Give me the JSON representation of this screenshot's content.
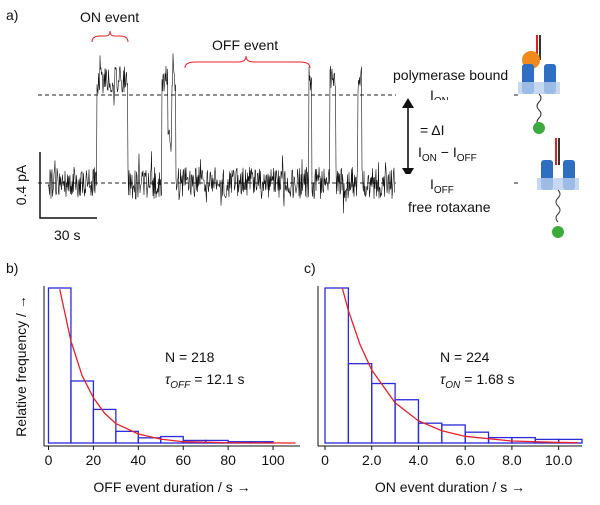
{
  "panel_a": {
    "label": "a)",
    "on_event": "ON event",
    "off_event": "OFF event",
    "polymerase_bound": "polymerase bound",
    "i_on": {
      "main": "I",
      "sub": "ON"
    },
    "delta": "= ΔI",
    "difference": {
      "a": "I",
      "a_sub": "ON",
      "minus": " − I",
      "b_sub": "OFF"
    },
    "i_off": {
      "main": "I",
      "sub": "OFF"
    },
    "free_rotaxane": "free rotaxane",
    "scale_current": "0.4 pA",
    "scale_time": "30 s"
  },
  "chart_data": [
    {
      "type": "histogram",
      "panel_label": "b)",
      "ylabel": "Relative frequency / →",
      "xlabel": "OFF event duration / s →",
      "bins": [
        0,
        10,
        20,
        30,
        40,
        50,
        60,
        70,
        80,
        90,
        100,
        110
      ],
      "values": [
        120,
        48,
        26,
        9,
        4,
        5,
        2,
        2,
        1,
        1,
        0
      ],
      "color": "#2b2bd8",
      "xlim": [
        -2,
        112
      ],
      "xticks": [
        0,
        20,
        40,
        60,
        80,
        100
      ],
      "ylim": [
        0,
        120
      ],
      "n_label": "N = 218",
      "tau_label": {
        "symbol": "τ",
        "sub": "OFF",
        "rest": "= 12.1 s"
      },
      "fit": {
        "color": "#e8202a",
        "x": [
          5,
          10,
          15,
          20,
          25,
          30,
          40,
          50,
          60,
          80,
          110
        ],
        "values": [
          119,
          79,
          52,
          35,
          23,
          15,
          7,
          3,
          1,
          0.2,
          0
        ]
      }
    },
    {
      "type": "histogram",
      "panel_label": "c)",
      "xlabel": "ON event duration / s →",
      "bins": [
        0,
        1,
        2,
        3,
        4,
        5,
        6,
        7,
        8,
        9,
        10,
        11
      ],
      "values": [
        86,
        44,
        33,
        24,
        11,
        10,
        6,
        3,
        3,
        2,
        2
      ],
      "color": "#2b2bd8",
      "xlim": [
        -0.3,
        11
      ],
      "xticks": [
        0,
        {
          "value": 2,
          "label": "2.0"
        },
        {
          "value": 4,
          "label": "4.0"
        },
        {
          "value": 6,
          "label": "6.0"
        },
        {
          "value": 8,
          "label": "8.0"
        },
        {
          "value": 10,
          "label": "10.0"
        }
      ],
      "ylim": [
        0,
        86
      ],
      "n_label": "N = 224",
      "tau_label": {
        "symbol": "τ",
        "sub": "ON",
        "rest": "= 1.68 s"
      },
      "fit": {
        "color": "#e8202a",
        "x": [
          0.74,
          1,
          1.5,
          2,
          3,
          4,
          5,
          6,
          8,
          10,
          10.8
        ],
        "values": [
          86,
          73.5,
          54.6,
          40.5,
          22.3,
          12.3,
          6.8,
          3.7,
          1.1,
          0.3,
          0.2
        ]
      }
    }
  ]
}
